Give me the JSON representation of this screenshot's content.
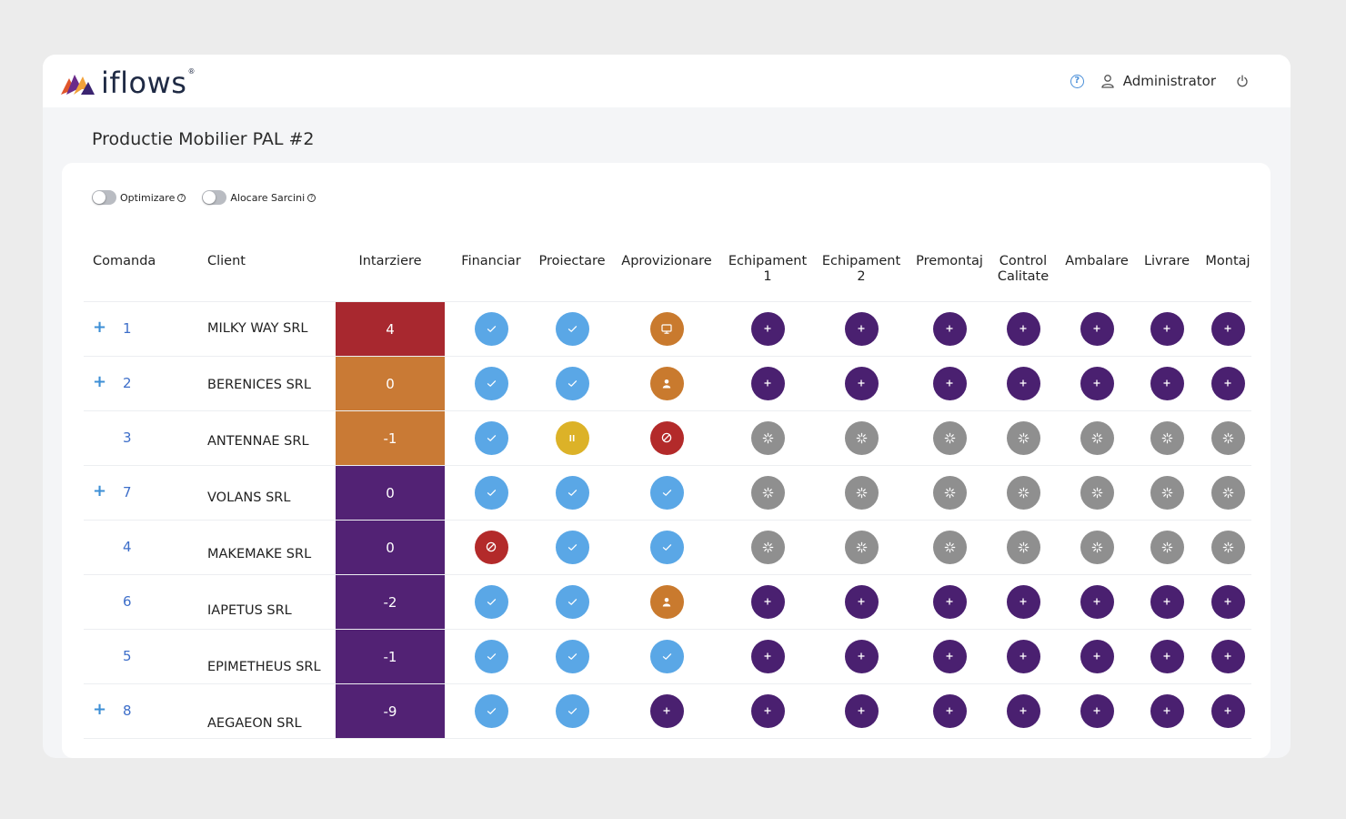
{
  "app": {
    "logo_text": "iflows",
    "logo_reg": "®",
    "user_name": "Administrator"
  },
  "page": {
    "title": "Productie Mobilier PAL #2"
  },
  "toggles": [
    {
      "label": "Optimizare",
      "on": false
    },
    {
      "label": "Alocare Sarcini",
      "on": false
    }
  ],
  "columns": {
    "comanda": "Comanda",
    "client": "Client",
    "intarziere": "Intarziere",
    "steps": [
      [
        "Financiar"
      ],
      [
        "Proiectare"
      ],
      [
        "Aprovizionare"
      ],
      [
        "Echipament",
        "1"
      ],
      [
        "Echipament",
        "2"
      ],
      [
        "Premontaj"
      ],
      [
        "Control",
        "Calitate"
      ],
      [
        "Ambalare"
      ],
      [
        "Livrare"
      ],
      [
        "Montaj"
      ]
    ]
  },
  "colors": {
    "done": "#5aa7e6",
    "todo": "#4a2070",
    "waiting": "#8f8f8f",
    "paused": "#dcb228",
    "blocked": "#b32a2a",
    "in_progress": "#c97a2e",
    "delay_red": "#a8282f",
    "delay_orange": "#c97a35",
    "delay_purple": "#522274"
  },
  "rows": [
    {
      "expand": "+",
      "order": "1",
      "client": "MILKY WAY SRL",
      "delay": "4",
      "delay_color": "delay_red",
      "steps": [
        "done",
        "done",
        "monitor",
        "todo",
        "todo",
        "todo",
        "todo",
        "todo",
        "todo",
        "todo"
      ]
    },
    {
      "expand": "+",
      "order": "2",
      "client": "BERENICES SRL",
      "delay": "0",
      "delay_color": "delay_orange",
      "steps": [
        "done",
        "done",
        "person",
        "todo",
        "todo",
        "todo",
        "todo",
        "todo",
        "todo",
        "todo"
      ]
    },
    {
      "expand": "",
      "order": "3",
      "client": "ANTENNAE SRL",
      "delay": "-1",
      "delay_color": "delay_orange",
      "steps": [
        "done",
        "paused",
        "blocked",
        "waiting",
        "waiting",
        "waiting",
        "waiting",
        "waiting",
        "waiting",
        "waiting"
      ]
    },
    {
      "expand": "+",
      "order": "7",
      "client": "VOLANS SRL",
      "delay": "0",
      "delay_color": "delay_purple",
      "steps": [
        "done",
        "done",
        "done",
        "waiting",
        "waiting",
        "waiting",
        "waiting",
        "waiting",
        "waiting",
        "waiting"
      ]
    },
    {
      "expand": "",
      "order": "4",
      "client": "MAKEMAKE SRL",
      "delay": "0",
      "delay_color": "delay_purple",
      "steps": [
        "blocked",
        "done",
        "done",
        "waiting",
        "waiting",
        "waiting",
        "waiting",
        "waiting",
        "waiting",
        "waiting"
      ]
    },
    {
      "expand": "",
      "order": "6",
      "client": "IAPETUS SRL",
      "delay": "-2",
      "delay_color": "delay_purple",
      "steps": [
        "done",
        "done",
        "person",
        "todo",
        "todo",
        "todo",
        "todo",
        "todo",
        "todo",
        "todo"
      ]
    },
    {
      "expand": "",
      "order": "5",
      "client": "EPIMETHEUS SRL",
      "delay": "-1",
      "delay_color": "delay_purple",
      "steps": [
        "done",
        "done",
        "done",
        "todo",
        "todo",
        "todo",
        "todo",
        "todo",
        "todo",
        "todo"
      ]
    },
    {
      "expand": "+",
      "order": "8",
      "client": "AEGAEON SRL",
      "delay": "-9",
      "delay_color": "delay_purple",
      "steps": [
        "done",
        "done",
        "todo",
        "todo",
        "todo",
        "todo",
        "todo",
        "todo",
        "todo",
        "todo"
      ]
    }
  ]
}
